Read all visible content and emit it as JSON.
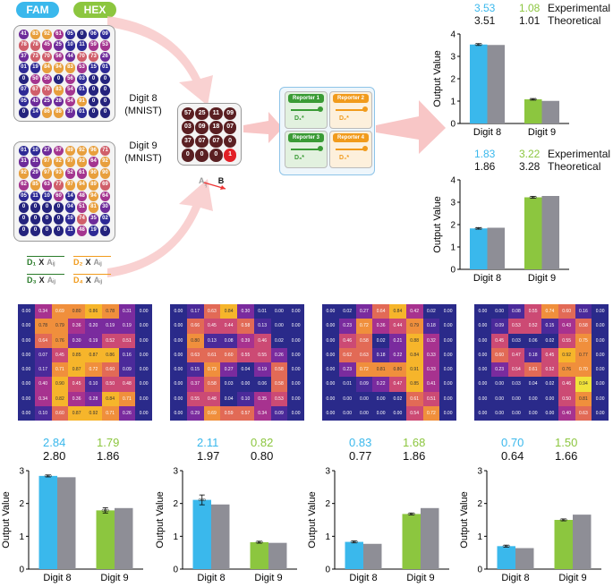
{
  "header": {
    "fam_label": "FAM",
    "hex_label": "HEX"
  },
  "colors": {
    "fam": "#3ab8ec",
    "hex": "#8cc63f",
    "theory": "#8e8e96",
    "black": "#222222"
  },
  "left_grid_top": {
    "values": [
      "41",
      "83",
      "92",
      "61",
      "05",
      "0",
      "06",
      "09",
      "78",
      "78",
      "45",
      "25",
      "10",
      "11",
      "59",
      "53",
      "37",
      "73",
      "70",
      "56",
      "44",
      "70",
      "73",
      "26",
      "01",
      "19",
      "84",
      "94",
      "83",
      "53",
      "15",
      "01",
      "0",
      "50",
      "50",
      "0",
      "56",
      "03",
      "0",
      "0",
      "07",
      "67",
      "70",
      "83",
      "54",
      "01",
      "0",
      "0",
      "05",
      "43",
      "25",
      "28",
      "54",
      "91",
      "0",
      "0",
      "0",
      "14",
      "86",
      "88",
      "37",
      "01",
      "0",
      "0"
    ],
    "label": "Digit 8\n(MNIST)"
  },
  "left_grid_bottom": {
    "values": [
      "01",
      "10",
      "27",
      "57",
      "89",
      "92",
      "96",
      "71",
      "31",
      "31",
      "97",
      "92",
      "97",
      "93",
      "64",
      "92",
      "92",
      "29",
      "97",
      "93",
      "52",
      "61",
      "90",
      "90",
      "62",
      "85",
      "63",
      "77",
      "97",
      "94",
      "89",
      "69",
      "05",
      "11",
      "10",
      "60",
      "14",
      "48",
      "94",
      "64",
      "0",
      "0",
      "0",
      "0",
      "04",
      "51",
      "81",
      "30",
      "0",
      "0",
      "0",
      "0",
      "10",
      "74",
      "35",
      "02",
      "0",
      "0",
      "0",
      "0",
      "11",
      "48",
      "19",
      "0"
    ],
    "label": "Digit 9\n(MNIST)"
  },
  "mid_grid": {
    "values": [
      "57",
      "25",
      "11",
      "09",
      "03",
      "09",
      "18",
      "07",
      "37",
      "07",
      "07",
      "0",
      "0",
      "0",
      "0",
      "1"
    ]
  },
  "mid_caption": {
    "a": "A",
    "a_sub": "ij",
    "b": "B"
  },
  "reporters": [
    {
      "title": "Reporter 1",
      "strand": "D₁*"
    },
    {
      "title": "Reporter 2",
      "strand": "D₂*"
    },
    {
      "title": "Reporter 3",
      "strand": "D₃*"
    },
    {
      "title": "Reporter 4",
      "strand": "D₄*"
    }
  ],
  "legend_terms": [
    {
      "d": "D₁",
      "x": "X",
      "a": "Aᵢⱼ"
    },
    {
      "d": "D₂",
      "x": "X",
      "a": "Aᵢⱼ"
    },
    {
      "d": "D₃",
      "x": "X",
      "a": "Aᵢⱼ"
    },
    {
      "d": "D₄",
      "x": "X",
      "a": "Aᵢⱼ"
    }
  ],
  "heatmaps": [
    {
      "values": [
        "0.00",
        "0.34",
        "0.69",
        "0.80",
        "0.86",
        "0.78",
        "0.31",
        "0.00",
        "0.00",
        "0.78",
        "0.79",
        "0.36",
        "0.20",
        "0.19",
        "0.19",
        "0.00",
        "0.00",
        "0.64",
        "0.76",
        "0.30",
        "0.19",
        "0.52",
        "0.51",
        "0.00",
        "0.00",
        "0.07",
        "0.45",
        "0.85",
        "0.87",
        "0.86",
        "0.16",
        "0.00",
        "0.00",
        "0.17",
        "0.71",
        "0.87",
        "0.72",
        "0.60",
        "0.09",
        "0.00",
        "0.00",
        "0.40",
        "0.90",
        "0.45",
        "0.10",
        "0.50",
        "0.48",
        "0.00",
        "0.00",
        "0.34",
        "0.82",
        "0.36",
        "0.28",
        "0.84",
        "0.71",
        "0.00",
        "0.00",
        "0.10",
        "0.60",
        "0.87",
        "0.92",
        "0.71",
        "0.26",
        "0.00"
      ]
    },
    {
      "values": [
        "0.00",
        "0.17",
        "0.63",
        "0.84",
        "0.30",
        "0.01",
        "0.00",
        "0.00",
        "0.00",
        "0.66",
        "0.45",
        "0.44",
        "0.58",
        "0.13",
        "0.00",
        "0.00",
        "0.00",
        "0.80",
        "0.13",
        "0.08",
        "0.39",
        "0.46",
        "0.02",
        "0.00",
        "0.00",
        "0.63",
        "0.61",
        "0.60",
        "0.55",
        "0.55",
        "0.26",
        "0.00",
        "0.00",
        "0.15",
        "0.73",
        "0.27",
        "0.04",
        "0.19",
        "0.58",
        "0.00",
        "0.00",
        "0.37",
        "0.58",
        "0.03",
        "0.00",
        "0.06",
        "0.58",
        "0.00",
        "0.00",
        "0.55",
        "0.48",
        "0.04",
        "0.10",
        "0.35",
        "0.53",
        "0.00",
        "0.00",
        "0.29",
        "0.69",
        "0.59",
        "0.57",
        "0.34",
        "0.09",
        "0.00"
      ]
    },
    {
      "values": [
        "0.00",
        "0.02",
        "0.27",
        "0.64",
        "0.84",
        "0.42",
        "0.02",
        "0.00",
        "0.00",
        "0.23",
        "0.72",
        "0.36",
        "0.44",
        "0.79",
        "0.18",
        "0.00",
        "0.00",
        "0.46",
        "0.58",
        "0.02",
        "0.21",
        "0.88",
        "0.32",
        "0.00",
        "0.00",
        "0.62",
        "0.63",
        "0.18",
        "0.22",
        "0.84",
        "0.33",
        "0.00",
        "0.00",
        "0.23",
        "0.72",
        "0.81",
        "0.80",
        "0.91",
        "0.33",
        "0.00",
        "0.00",
        "0.01",
        "0.09",
        "0.22",
        "0.47",
        "0.85",
        "0.41",
        "0.00",
        "0.00",
        "0.00",
        "0.00",
        "0.00",
        "0.02",
        "0.61",
        "0.51",
        "0.00",
        "0.00",
        "0.00",
        "0.00",
        "0.00",
        "0.00",
        "0.54",
        "0.72",
        "0.00"
      ]
    },
    {
      "values": [
        "0.00",
        "0.00",
        "0.08",
        "0.55",
        "0.74",
        "0.60",
        "0.16",
        "0.00",
        "0.00",
        "0.09",
        "0.53",
        "0.52",
        "0.15",
        "0.43",
        "0.58",
        "0.00",
        "0.00",
        "0.45",
        "0.03",
        "0.06",
        "0.02",
        "0.55",
        "0.75",
        "0.00",
        "0.00",
        "0.60",
        "0.47",
        "0.18",
        "0.45",
        "0.92",
        "0.77",
        "0.00",
        "0.00",
        "0.23",
        "0.54",
        "0.61",
        "0.52",
        "0.76",
        "0.70",
        "0.00",
        "0.00",
        "0.00",
        "0.03",
        "0.04",
        "0.02",
        "0.46",
        "0.94",
        "0.00",
        "0.00",
        "0.00",
        "0.00",
        "0.00",
        "0.00",
        "0.50",
        "0.81",
        "0.00",
        "0.00",
        "0.00",
        "0.00",
        "0.00",
        "0.00",
        "0.40",
        "0.63",
        "0.00"
      ]
    }
  ],
  "top_labels": [
    {
      "exp8": "3.53",
      "exp9": "1.08",
      "th8": "3.51",
      "th9": "1.01",
      "exp_word": "Experimental",
      "th_word": "Theoretical"
    },
    {
      "exp8": "1.83",
      "exp9": "3.22",
      "th8": "1.86",
      "th9": "3.28",
      "exp_word": "Experimental",
      "th_word": "Theoretical"
    }
  ],
  "bottom_labels": [
    {
      "exp8": "2.84",
      "exp9": "1.79",
      "th8": "2.80",
      "th9": "1.86"
    },
    {
      "exp8": "2.11",
      "exp9": "0.82",
      "th8": "1.97",
      "th9": "0.80"
    },
    {
      "exp8": "0.83",
      "exp9": "1.68",
      "th8": "0.77",
      "th9": "1.86"
    },
    {
      "exp8": "0.70",
      "exp9": "1.50",
      "th8": "0.64",
      "th9": "1.66"
    }
  ],
  "chart_data": [
    {
      "type": "bar",
      "categories": [
        "Digit 8",
        "Digit 9"
      ],
      "ylabel": "Output Value",
      "xlabel": "",
      "ylim": [
        0,
        4
      ],
      "yticks": [
        "0",
        "1",
        "2",
        "3",
        "4"
      ],
      "series": [
        {
          "values": [
            3.53,
            1.08
          ],
          "error": [
            0.04,
            0.03
          ]
        },
        {
          "values": [
            3.51,
            1.01
          ]
        }
      ]
    },
    {
      "type": "bar",
      "categories": [
        "Digit 8",
        "Digit 9"
      ],
      "ylabel": "Output Value",
      "xlabel": "",
      "ylim": [
        0,
        4
      ],
      "yticks": [
        "0",
        "1",
        "2",
        "3",
        "4"
      ],
      "series": [
        {
          "values": [
            1.83,
            3.22
          ],
          "error": [
            0.03,
            0.04
          ]
        },
        {
          "values": [
            1.86,
            3.28
          ]
        }
      ]
    },
    {
      "type": "bar",
      "categories": [
        "Digit 8",
        "Digit 9"
      ],
      "ylabel": "Output Value",
      "xlabel": "",
      "ylim": [
        0,
        3
      ],
      "yticks": [
        "0",
        "1",
        "2",
        "3"
      ],
      "series": [
        {
          "values": [
            2.84,
            1.79
          ],
          "error": [
            0.03,
            0.08
          ]
        },
        {
          "values": [
            2.8,
            1.86
          ]
        }
      ]
    },
    {
      "type": "bar",
      "categories": [
        "Digit 8",
        "Digit 9"
      ],
      "ylabel": "Output Value",
      "xlabel": "",
      "ylim": [
        0,
        3
      ],
      "yticks": [
        "0",
        "1",
        "2",
        "3"
      ],
      "series": [
        {
          "values": [
            2.11,
            0.82
          ],
          "error": [
            0.15,
            0.03
          ]
        },
        {
          "values": [
            1.97,
            0.8
          ]
        }
      ]
    },
    {
      "type": "bar",
      "categories": [
        "Digit 8",
        "Digit 9"
      ],
      "ylabel": "Output Value",
      "xlabel": "",
      "ylim": [
        0,
        3
      ],
      "yticks": [
        "0",
        "1",
        "2",
        "3"
      ],
      "series": [
        {
          "values": [
            0.83,
            1.68
          ],
          "error": [
            0.03,
            0.03
          ]
        },
        {
          "values": [
            0.77,
            1.86
          ]
        }
      ]
    },
    {
      "type": "bar",
      "categories": [
        "Digit 8",
        "Digit 9"
      ],
      "ylabel": "Output Value",
      "xlabel": "",
      "ylim": [
        0,
        3
      ],
      "yticks": [
        "0",
        "1",
        "2",
        "3"
      ],
      "series": [
        {
          "values": [
            0.7,
            1.5
          ],
          "error": [
            0.03,
            0.03
          ]
        },
        {
          "values": [
            0.64,
            1.66
          ]
        }
      ]
    }
  ]
}
